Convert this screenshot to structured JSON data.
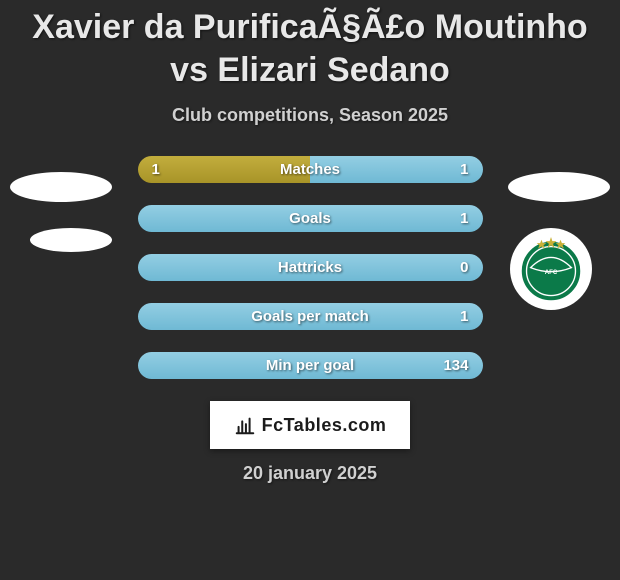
{
  "title": "Xavier da PurificaÃ§Ã£o Moutinho vs Elizari Sedano",
  "subtitle": "Club competitions, Season 2025",
  "date": "20 january 2025",
  "brand": "FcTables.com",
  "colors": {
    "bg": "#2a2a2a",
    "bar_left": "#b5a034",
    "bar_right": "#7fc3db",
    "text": "#e8e8e8",
    "badge_green": "#0b7a49"
  },
  "rows": [
    {
      "label": "Matches",
      "left": "1",
      "right": "1",
      "left_pct": 50,
      "right_pct": 50
    },
    {
      "label": "Goals",
      "left": "",
      "right": "1",
      "left_pct": 0,
      "right_pct": 100
    },
    {
      "label": "Hattricks",
      "left": "",
      "right": "0",
      "left_pct": 0,
      "right_pct": 100
    },
    {
      "label": "Goals per match",
      "left": "",
      "right": "1",
      "left_pct": 0,
      "right_pct": 100
    },
    {
      "label": "Min per goal",
      "left": "",
      "right": "134",
      "left_pct": 0,
      "right_pct": 100
    }
  ]
}
